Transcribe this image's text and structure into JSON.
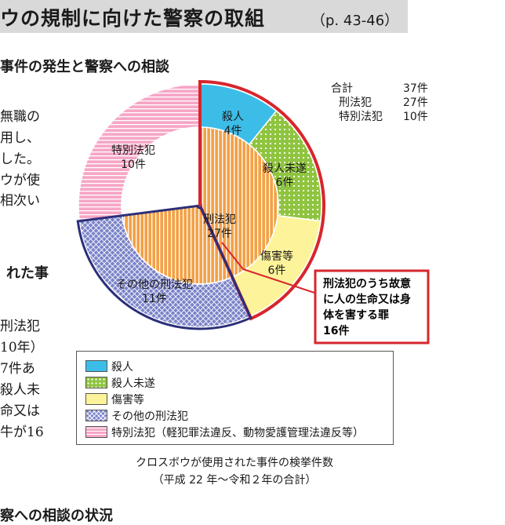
{
  "header": {
    "title": "ウの規制に向けた警察の取組",
    "pages": "（p. 43-46）"
  },
  "subheading_top": "事件の発生と警察への相談",
  "subheading_bottom": "察への相談の状況",
  "mid_heading": "れた事",
  "body_text": [
    "無職の",
    "用し、",
    "した。",
    "ウが使",
    "相次い",
    "刑法犯",
    "10年）",
    "7件あ",
    "殺人未",
    "命又は",
    "牛が16"
  ],
  "totals": [
    {
      "label": "合計",
      "value": "37件"
    },
    {
      "label": "刑法犯",
      "value": "27件"
    },
    {
      "label": "特別法犯",
      "value": "10件"
    }
  ],
  "chart_data": {
    "type": "pie",
    "total": 37,
    "outer_ring": [
      {
        "name": "殺人",
        "label": "殺人",
        "value_label": "4件",
        "value": 4,
        "color": "#3cbde8"
      },
      {
        "name": "殺人未遂",
        "label": "殺人未遂",
        "value_label": "6件",
        "value": 6,
        "color": "#8fc43f"
      },
      {
        "name": "傷害等",
        "label": "傷害等",
        "value_label": "6件",
        "value": 6,
        "color": "#fdf39a"
      },
      {
        "name": "その他の刑法犯",
        "label": "その他の刑法犯",
        "value_label": "11件",
        "value": 11,
        "color": "#7b83c9"
      },
      {
        "name": "特別法犯",
        "label": "特別法犯",
        "value_label": "10件",
        "value": 10,
        "color": "#f6a6c6"
      }
    ],
    "inner": {
      "label": "刑法犯",
      "value_label": "27件",
      "value": 27,
      "color": "#f3a147"
    },
    "callout": {
      "lines": [
        "刑法犯のうち故意",
        "に人の生命又は身",
        "体を害する罪",
        "16件"
      ],
      "value": 16,
      "color": "#d7262d"
    }
  },
  "legend": [
    {
      "label": "殺人",
      "color": "#3cbde8"
    },
    {
      "label": "殺人未遂",
      "color": "#8fc43f"
    },
    {
      "label": "傷害等",
      "color": "#fdf39a"
    },
    {
      "label": "その他の刑法犯",
      "color": "#7b83c9"
    },
    {
      "label": "特別法犯（軽犯罪法違反、動物愛護管理法違反等）",
      "color": "#f6a6c6"
    }
  ],
  "caption": {
    "line1": "クロスボウが使用された事件の検挙件数",
    "line2": "（平成 22 年〜令和２年の合計）"
  }
}
